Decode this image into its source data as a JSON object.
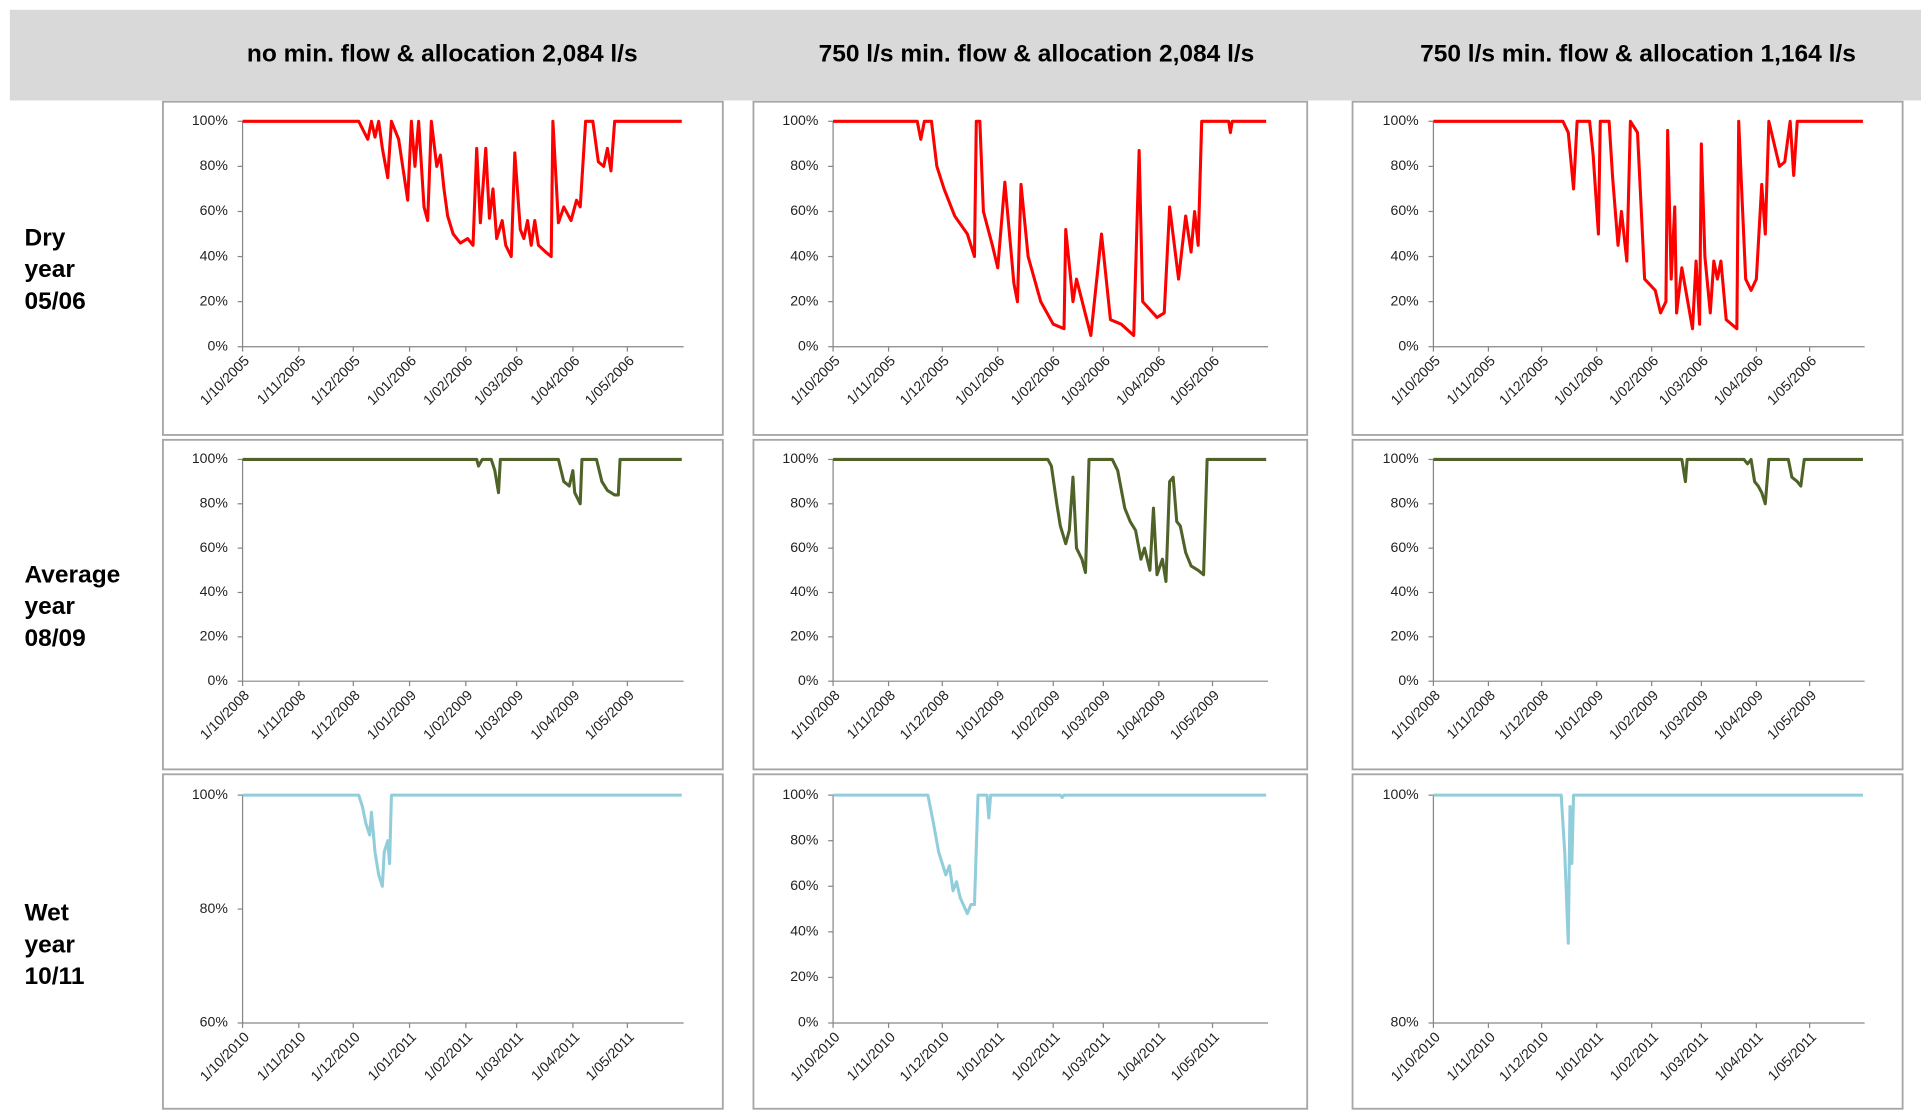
{
  "column_headers": [
    "no min. flow & allocation 2,084 l/s",
    "750 l/s min. flow & allocation 2,084 l/s",
    "750 l/s min. flow & allocation 1,164 l/s"
  ],
  "row_labels": [
    [
      "Dry",
      "year",
      "05/06"
    ],
    [
      "Average",
      "year",
      "08/09"
    ],
    [
      "Wet",
      "year",
      "10/11"
    ]
  ],
  "chart_data": [
    {
      "type": "line",
      "color": "#ff0000",
      "x": [
        "1/10/2005",
        "1/12/2005",
        "4/12/2005",
        "9/12/2005",
        "11/12/2005",
        "13/12/2005",
        "15/12/2005",
        "17/12/2005",
        "20/12/2005",
        "22/12/2005",
        "26/12/2005",
        "31/12/2005",
        "2/01/2006",
        "4/01/2006",
        "6/01/2006",
        "9/01/2006",
        "11/01/2006",
        "13/01/2006",
        "16/01/2006",
        "18/01/2006",
        "20/01/2006",
        "22/01/2006",
        "25/01/2006",
        "29/01/2006",
        "2/02/2006",
        "5/02/2006",
        "7/02/2006",
        "9/02/2006",
        "12/02/2006",
        "14/02/2006",
        "16/02/2006",
        "18/02/2006",
        "21/02/2006",
        "23/02/2006",
        "26/02/2006",
        "28/02/2006",
        "3/03/2006",
        "5/03/2006",
        "7/03/2006",
        "9/03/2006",
        "11/03/2006",
        "13/03/2006",
        "17/03/2006",
        "20/03/2006",
        "21/03/2006",
        "24/03/2006",
        "27/03/2006",
        "31/03/2006",
        "3/04/2006",
        "5/04/2006",
        "8/04/2006",
        "12/04/2006",
        "15/04/2006",
        "18/04/2006",
        "20/04/2006",
        "22/04/2006",
        "24/04/2006",
        "31/05/2006"
      ],
      "values": [
        100,
        100,
        100,
        92,
        100,
        93,
        100,
        88,
        75,
        100,
        92,
        65,
        100,
        80,
        100,
        62,
        56,
        100,
        80,
        85,
        70,
        58,
        50,
        46,
        48,
        45,
        88,
        55,
        88,
        57,
        70,
        48,
        56,
        45,
        40,
        86,
        52,
        48,
        56,
        45,
        56,
        45,
        42,
        40,
        100,
        55,
        62,
        56,
        65,
        62,
        100,
        100,
        82,
        80,
        88,
        78,
        100,
        100
      ],
      "xlim": [
        "1/10/2005",
        "1/06/2006"
      ],
      "xticks": [
        "1/10/2005",
        "1/11/2005",
        "1/12/2005",
        "1/01/2006",
        "1/02/2006",
        "1/03/2006",
        "1/04/2006",
        "1/05/2006"
      ],
      "ylim": [
        0,
        100
      ],
      "yticks": [
        {
          "value": 0,
          "label": "0%"
        },
        {
          "value": 20,
          "label": "20%"
        },
        {
          "value": 40,
          "label": "40%"
        },
        {
          "value": 60,
          "label": "60%"
        },
        {
          "value": 80,
          "label": "80%"
        },
        {
          "value": 100,
          "label": "100%"
        }
      ]
    },
    {
      "type": "line",
      "color": "#ff0000",
      "x": [
        "1/10/2005",
        "17/11/2005",
        "19/11/2005",
        "21/11/2005",
        "25/11/2005",
        "28/11/2005",
        "2/12/2005",
        "8/12/2005",
        "15/12/2005",
        "19/12/2005",
        "20/12/2005",
        "22/12/2005",
        "24/12/2005",
        "29/12/2005",
        "1/01/2006",
        "5/01/2006",
        "10/01/2006",
        "12/01/2006",
        "14/01/2006",
        "18/01/2006",
        "25/01/2006",
        "1/02/2006",
        "7/02/2006",
        "8/02/2006",
        "12/02/2006",
        "14/02/2006",
        "22/02/2006",
        "28/02/2006",
        "5/03/2006",
        "11/03/2006",
        "18/03/2006",
        "21/03/2006",
        "23/03/2006",
        "31/03/2006",
        "4/04/2006",
        "7/04/2006",
        "12/04/2006",
        "16/04/2006",
        "19/04/2006",
        "21/04/2006",
        "23/04/2006",
        "25/04/2006",
        "10/05/2006",
        "11/05/2006",
        "12/05/2006",
        "31/05/2006"
      ],
      "values": [
        100,
        100,
        92,
        100,
        100,
        80,
        70,
        58,
        50,
        40,
        100,
        100,
        60,
        45,
        35,
        73,
        28,
        20,
        72,
        40,
        20,
        10,
        8,
        52,
        20,
        30,
        5,
        50,
        12,
        10,
        5,
        87,
        20,
        13,
        15,
        62,
        30,
        58,
        42,
        60,
        45,
        100,
        100,
        95,
        100,
        100
      ],
      "xlim": [
        "1/10/2005",
        "1/06/2006"
      ],
      "xticks": [
        "1/10/2005",
        "1/11/2005",
        "1/12/2005",
        "1/01/2006",
        "1/02/2006",
        "1/03/2006",
        "1/04/2006",
        "1/05/2006"
      ],
      "ylim": [
        0,
        100
      ],
      "yticks": [
        {
          "value": 0,
          "label": "0%"
        },
        {
          "value": 20,
          "label": "20%"
        },
        {
          "value": 40,
          "label": "40%"
        },
        {
          "value": 60,
          "label": "60%"
        },
        {
          "value": 80,
          "label": "80%"
        },
        {
          "value": 100,
          "label": "100%"
        }
      ]
    },
    {
      "type": "line",
      "color": "#ff0000",
      "x": [
        "1/10/2005",
        "13/12/2005",
        "16/12/2005",
        "19/12/2005",
        "21/12/2005",
        "28/12/2005",
        "30/12/2005",
        "2/01/2006",
        "3/01/2006",
        "8/01/2006",
        "10/01/2006",
        "13/01/2006",
        "15/01/2006",
        "18/01/2006",
        "20/01/2006",
        "24/01/2006",
        "28/01/2006",
        "3/02/2006",
        "6/02/2006",
        "9/02/2006",
        "10/02/2006",
        "12/02/2006",
        "14/02/2006",
        "15/02/2006",
        "18/02/2006",
        "24/02/2006",
        "26/02/2006",
        "28/02/2006",
        "1/03/2006",
        "3/03/2006",
        "6/03/2006",
        "8/03/2006",
        "10/03/2006",
        "12/03/2006",
        "15/03/2006",
        "21/03/2006",
        "22/03/2006",
        "24/03/2006",
        "26/03/2006",
        "29/03/2006",
        "1/04/2006",
        "4/04/2006",
        "6/04/2006",
        "8/04/2006",
        "14/04/2006",
        "17/04/2006",
        "20/04/2006",
        "22/04/2006",
        "24/04/2006",
        "31/05/2006"
      ],
      "values": [
        100,
        100,
        95,
        70,
        100,
        100,
        85,
        50,
        100,
        100,
        75,
        45,
        60,
        38,
        100,
        95,
        30,
        25,
        15,
        20,
        96,
        30,
        62,
        15,
        35,
        8,
        38,
        10,
        90,
        40,
        15,
        38,
        30,
        38,
        12,
        8,
        100,
        65,
        30,
        25,
        30,
        72,
        50,
        100,
        80,
        82,
        100,
        76,
        100,
        100
      ],
      "xlim": [
        "1/10/2005",
        "1/06/2006"
      ],
      "xticks": [
        "1/10/2005",
        "1/11/2005",
        "1/12/2005",
        "1/01/2006",
        "1/02/2006",
        "1/03/2006",
        "1/04/2006",
        "1/05/2006"
      ],
      "ylim": [
        0,
        100
      ],
      "yticks": [
        {
          "value": 0,
          "label": "0%"
        },
        {
          "value": 20,
          "label": "20%"
        },
        {
          "value": 40,
          "label": "40%"
        },
        {
          "value": 60,
          "label": "60%"
        },
        {
          "value": 80,
          "label": "80%"
        },
        {
          "value": 100,
          "label": "100%"
        }
      ]
    },
    {
      "type": "line",
      "color": "#4f6228",
      "x": [
        "1/10/2008",
        "7/02/2009",
        "8/02/2009",
        "10/02/2009",
        "15/02/2009",
        "17/02/2009",
        "19/02/2009",
        "20/02/2009",
        "24/03/2009",
        "27/03/2009",
        "30/03/2009",
        "1/04/2009",
        "2/04/2009",
        "5/04/2009",
        "6/04/2009",
        "14/04/2009",
        "17/04/2009",
        "20/04/2009",
        "24/04/2009",
        "26/04/2009",
        "27/04/2009",
        "31/05/2009"
      ],
      "values": [
        100,
        100,
        97,
        100,
        100,
        95,
        85,
        100,
        100,
        90,
        88,
        95,
        85,
        80,
        100,
        100,
        90,
        86,
        84,
        84,
        100,
        100
      ],
      "xlim": [
        "1/10/2008",
        "1/06/2009"
      ],
      "xticks": [
        "1/10/2008",
        "1/11/2008",
        "1/12/2008",
        "1/01/2009",
        "1/02/2009",
        "1/03/2009",
        "1/04/2009",
        "1/05/2009"
      ],
      "ylim": [
        0,
        100
      ],
      "yticks": [
        {
          "value": 0,
          "label": "0%"
        },
        {
          "value": 20,
          "label": "20%"
        },
        {
          "value": 40,
          "label": "40%"
        },
        {
          "value": 60,
          "label": "60%"
        },
        {
          "value": 80,
          "label": "80%"
        },
        {
          "value": 100,
          "label": "100%"
        }
      ]
    },
    {
      "type": "line",
      "color": "#4f6228",
      "x": [
        "1/10/2008",
        "29/01/2009",
        "31/01/2009",
        "3/02/2009",
        "5/02/2009",
        "8/02/2009",
        "10/02/2009",
        "12/02/2009",
        "14/02/2009",
        "17/02/2009",
        "19/02/2009",
        "21/02/2009",
        "6/03/2009",
        "9/03/2009",
        "13/03/2009",
        "16/03/2009",
        "19/03/2009",
        "22/03/2009",
        "24/03/2009",
        "27/03/2009",
        "29/03/2009",
        "31/03/2009",
        "3/04/2009",
        "5/04/2009",
        "7/04/2009",
        "9/04/2009",
        "11/04/2009",
        "13/04/2009",
        "16/04/2009",
        "19/04/2009",
        "23/04/2009",
        "26/04/2009",
        "28/04/2009",
        "31/05/2009"
      ],
      "values": [
        100,
        100,
        97,
        80,
        70,
        62,
        68,
        92,
        60,
        55,
        49,
        100,
        100,
        95,
        78,
        72,
        68,
        55,
        60,
        50,
        78,
        48,
        55,
        45,
        90,
        92,
        72,
        70,
        58,
        52,
        50,
        48,
        100,
        100
      ],
      "xlim": [
        "1/10/2008",
        "1/06/2009"
      ],
      "xticks": [
        "1/10/2008",
        "1/11/2008",
        "1/12/2008",
        "1/01/2009",
        "1/02/2009",
        "1/03/2009",
        "1/04/2009",
        "1/05/2009"
      ],
      "ylim": [
        0,
        100
      ],
      "yticks": [
        {
          "value": 0,
          "label": "0%"
        },
        {
          "value": 20,
          "label": "20%"
        },
        {
          "value": 40,
          "label": "40%"
        },
        {
          "value": 60,
          "label": "60%"
        },
        {
          "value": 80,
          "label": "80%"
        },
        {
          "value": 100,
          "label": "100%"
        }
      ]
    },
    {
      "type": "line",
      "color": "#4f6228",
      "x": [
        "1/10/2008",
        "18/02/2009",
        "20/02/2009",
        "21/02/2009",
        "25/03/2009",
        "27/03/2009",
        "29/03/2009",
        "31/03/2009",
        "2/04/2009",
        "4/04/2009",
        "6/04/2009",
        "8/04/2009",
        "19/04/2009",
        "21/04/2009",
        "24/04/2009",
        "26/04/2009",
        "28/04/2009",
        "31/05/2009"
      ],
      "values": [
        100,
        100,
        90,
        100,
        100,
        98,
        100,
        90,
        88,
        85,
        80,
        100,
        100,
        92,
        90,
        88,
        100,
        100
      ],
      "xlim": [
        "1/10/2008",
        "1/06/2009"
      ],
      "xticks": [
        "1/10/2008",
        "1/11/2008",
        "1/12/2008",
        "1/01/2009",
        "1/02/2009",
        "1/03/2009",
        "1/04/2009",
        "1/05/2009"
      ],
      "ylim": [
        0,
        100
      ],
      "yticks": [
        {
          "value": 0,
          "label": "0%"
        },
        {
          "value": 20,
          "label": "20%"
        },
        {
          "value": 40,
          "label": "40%"
        },
        {
          "value": 60,
          "label": "60%"
        },
        {
          "value": 80,
          "label": "80%"
        },
        {
          "value": 100,
          "label": "100%"
        }
      ]
    },
    {
      "type": "line",
      "color": "#92cddc",
      "x": [
        "1/10/2010",
        "4/12/2010",
        "6/12/2010",
        "8/12/2010",
        "10/12/2010",
        "11/12/2010",
        "13/12/2010",
        "15/12/2010",
        "17/12/2010",
        "18/12/2010",
        "20/12/2010",
        "21/12/2010",
        "22/12/2010",
        "31/05/2011"
      ],
      "values": [
        100,
        100,
        98,
        95,
        93,
        97,
        90,
        86,
        84,
        90,
        92,
        88,
        100,
        100
      ],
      "xlim": [
        "1/10/2010",
        "1/06/2011"
      ],
      "xticks": [
        "1/10/2010",
        "1/11/2010",
        "1/12/2010",
        "1/01/2011",
        "1/02/2011",
        "1/03/2011",
        "1/04/2011",
        "1/05/2011"
      ],
      "ylim": [
        60,
        100
      ],
      "yticks": [
        {
          "value": 60,
          "label": "60%"
        },
        {
          "value": 80,
          "label": "80%"
        },
        {
          "value": 100,
          "label": "100%"
        }
      ]
    },
    {
      "type": "line",
      "color": "#92cddc",
      "x": [
        "1/10/2010",
        "23/11/2010",
        "26/11/2010",
        "29/11/2010",
        "1/12/2010",
        "3/12/2010",
        "5/12/2010",
        "7/12/2010",
        "9/12/2010",
        "11/12/2010",
        "15/12/2010",
        "17/12/2010",
        "19/12/2010",
        "21/12/2010",
        "26/12/2010",
        "27/12/2010",
        "28/12/2010",
        "5/02/2011",
        "6/02/2011",
        "7/02/2011",
        "31/05/2011"
      ],
      "values": [
        100,
        100,
        88,
        75,
        70,
        65,
        69,
        58,
        62,
        55,
        48,
        52,
        52,
        100,
        100,
        90,
        100,
        100,
        99,
        100,
        100
      ],
      "xlim": [
        "1/10/2010",
        "1/06/2011"
      ],
      "xticks": [
        "1/10/2010",
        "1/11/2010",
        "1/12/2010",
        "1/01/2011",
        "1/02/2011",
        "1/03/2011",
        "1/04/2011",
        "1/05/2011"
      ],
      "ylim": [
        0,
        100
      ],
      "yticks": [
        {
          "value": 0,
          "label": "0%"
        },
        {
          "value": 20,
          "label": "20%"
        },
        {
          "value": 40,
          "label": "40%"
        },
        {
          "value": 60,
          "label": "60%"
        },
        {
          "value": 80,
          "label": "80%"
        },
        {
          "value": 100,
          "label": "100%"
        }
      ]
    },
    {
      "type": "line",
      "color": "#92cddc",
      "x": [
        "1/10/2010",
        "12/12/2010",
        "14/12/2010",
        "16/12/2010",
        "17/12/2010",
        "18/12/2010",
        "19/12/2010",
        "31/05/2011"
      ],
      "values": [
        100,
        100,
        95,
        87,
        99,
        94,
        100,
        100
      ],
      "xlim": [
        "1/10/2010",
        "1/06/2011"
      ],
      "xticks": [
        "1/10/2010",
        "1/11/2010",
        "1/12/2010",
        "1/01/2011",
        "1/02/2011",
        "1/03/2011",
        "1/04/2011",
        "1/05/2011"
      ],
      "ylim": [
        80,
        100
      ],
      "yticks": [
        {
          "value": 80,
          "label": "80%"
        },
        {
          "value": 100,
          "label": "100%"
        }
      ]
    }
  ]
}
